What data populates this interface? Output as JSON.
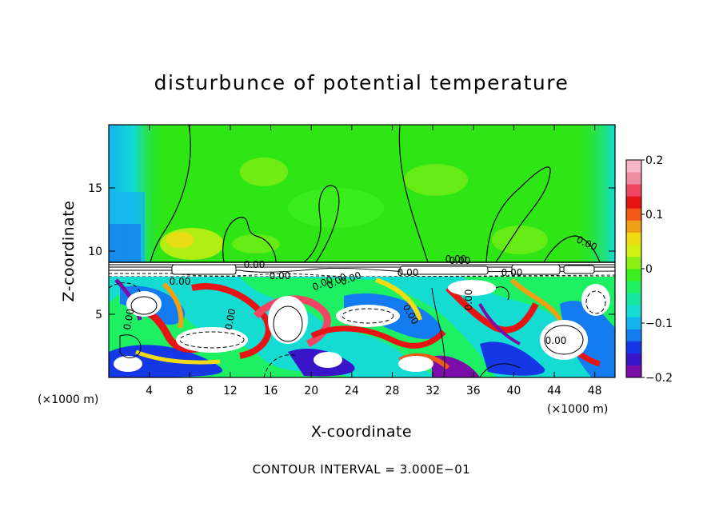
{
  "chart_data": {
    "type": "heatmap",
    "title": "disturbunce of potential temperature",
    "xlabel": "X-coordinate",
    "ylabel": "Z-coordinate",
    "x_unit_left": "(×1000 m)",
    "x_unit_right": "(×1000 m)",
    "xlim": [
      0,
      50
    ],
    "ylim": [
      0,
      20
    ],
    "x_ticks": [
      "4",
      "8",
      "12",
      "16",
      "20",
      "24",
      "28",
      "32",
      "36",
      "40",
      "44",
      "48"
    ],
    "y_ticks": [
      "5",
      "10",
      "15"
    ],
    "colorbar": {
      "range": [
        -0.2,
        0.2
      ],
      "tick_labels": [
        "0.2",
        "0.1",
        "0",
        "−0.1",
        "−0.2"
      ],
      "colors": [
        "#7a0da8",
        "#3a14c8",
        "#1438e6",
        "#147cf0",
        "#14b4f0",
        "#14dcd2",
        "#14e6a0",
        "#1ef064",
        "#3cf01e",
        "#8cf014",
        "#d2f014",
        "#f0dc14",
        "#f0a014",
        "#f05a14",
        "#e61414",
        "#f04664",
        "#f08ca0",
        "#f8b4c8"
      ]
    },
    "contour_labels": [
      "0.00",
      "0.00",
      "0.00",
      "0.00",
      "0.00",
      "0.00",
      "0.00",
      "0.00",
      "0.00",
      "0.00",
      "0.00",
      "0.00",
      "0.00",
      "0.00",
      "0.00",
      "0.00"
    ],
    "contour_interval_text": "CONTOUR INTERVAL = 3.000E−01"
  },
  "colors": {
    "background": "#ffffff",
    "upper_field": "#2ee614",
    "accent_cyan": "#14c8dc",
    "accent_red": "#e61414",
    "accent_blue": "#1438e6"
  }
}
